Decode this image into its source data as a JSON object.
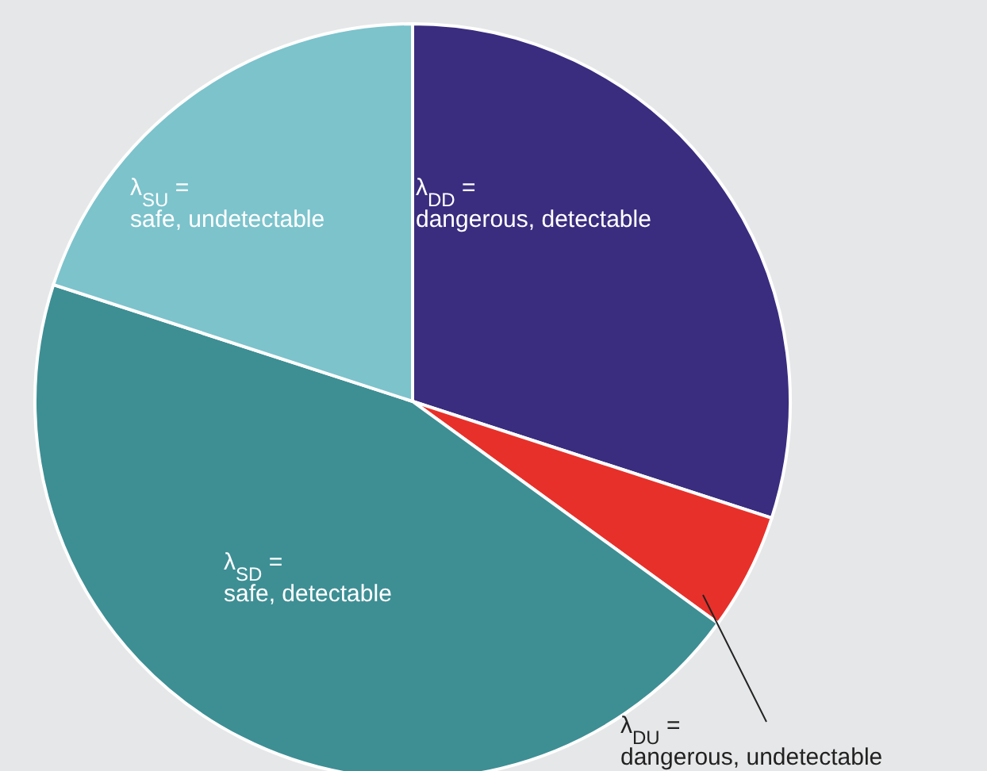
{
  "chart_data": {
    "type": "pie",
    "categories": [
      "λ$_{DD}$ = dangerous, detectable",
      "λ$_{DU}$ = dangerous, undetectable",
      "λ$_{SD}$ = safe, detectable",
      "λ$_{SU}$ = safe, undetectable"
    ],
    "values": [
      30,
      5,
      45,
      20
    ],
    "colors": [
      "#3a2d7f",
      "#e8302a",
      "#3d8f94",
      "#7cc3cc"
    ]
  }
}
